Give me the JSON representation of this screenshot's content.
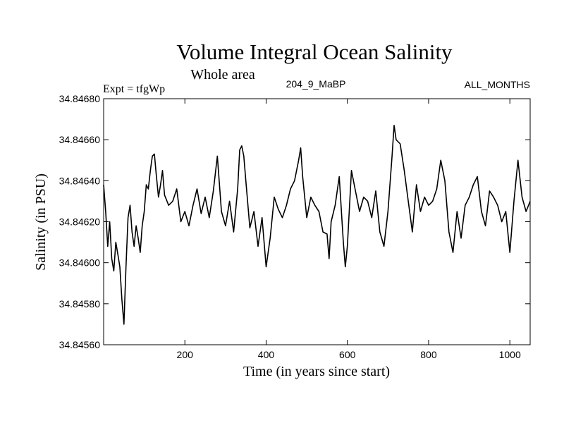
{
  "chart_data": {
    "type": "line",
    "title": "Volume Integral Ocean Salinity",
    "subtitle": "Whole area",
    "experiment_label": "Expt = tfgWp",
    "run_label": "204_9_MaBP",
    "months_label": "ALL_MONTHS",
    "xlabel": "Time (in years since start)",
    "ylabel": "Salinity (in PSU)",
    "xlim": [
      0,
      1050
    ],
    "ylim": [
      34.8456,
      34.8468
    ],
    "x_ticks": [
      200,
      400,
      600,
      800,
      1000
    ],
    "x_tick_labels": [
      "200",
      "400",
      "600",
      "800",
      "1000"
    ],
    "y_ticks": [
      34.8456,
      34.8458,
      34.846,
      34.8462,
      34.8464,
      34.8466,
      34.8468
    ],
    "y_tick_labels": [
      "34.84560",
      "34.84580",
      "34.84600",
      "34.84620",
      "34.84640",
      "34.84660",
      "34.84680"
    ],
    "grid": false,
    "series": [
      {
        "name": "salinity",
        "color": "#000000",
        "x": [
          0,
          5,
          10,
          15,
          20,
          25,
          30,
          35,
          40,
          45,
          50,
          55,
          60,
          65,
          70,
          75,
          80,
          85,
          90,
          95,
          100,
          105,
          110,
          115,
          120,
          125,
          130,
          135,
          140,
          145,
          150,
          160,
          170,
          180,
          190,
          200,
          210,
          220,
          230,
          240,
          250,
          260,
          270,
          280,
          290,
          300,
          310,
          320,
          330,
          335,
          340,
          345,
          350,
          360,
          370,
          380,
          390,
          400,
          410,
          420,
          430,
          440,
          450,
          460,
          470,
          480,
          485,
          490,
          500,
          510,
          520,
          530,
          540,
          550,
          555,
          560,
          570,
          580,
          590,
          595,
          600,
          610,
          620,
          630,
          640,
          650,
          660,
          670,
          680,
          690,
          700,
          710,
          715,
          720,
          730,
          740,
          750,
          760,
          770,
          780,
          790,
          800,
          810,
          820,
          830,
          840,
          850,
          860,
          870,
          880,
          890,
          900,
          910,
          920,
          930,
          940,
          950,
          960,
          970,
          980,
          990,
          1000,
          1010,
          1020,
          1030,
          1040,
          1050
        ],
        "values": [
          34.84638,
          34.84625,
          34.84608,
          34.8462,
          34.84602,
          34.84596,
          34.8461,
          34.84604,
          34.84598,
          34.84582,
          34.8457,
          34.84598,
          34.84622,
          34.84628,
          34.84615,
          34.84608,
          34.84618,
          34.84612,
          34.84605,
          34.84618,
          34.84625,
          34.84638,
          34.84636,
          34.84645,
          34.84652,
          34.84653,
          34.84642,
          34.84632,
          34.84638,
          34.84645,
          34.84633,
          34.84628,
          34.8463,
          34.84636,
          34.8462,
          34.84625,
          34.84618,
          34.84628,
          34.84636,
          34.84624,
          34.84632,
          34.84622,
          34.84635,
          34.84652,
          34.84625,
          34.84618,
          34.8463,
          34.84615,
          34.84636,
          34.84655,
          34.84657,
          34.84652,
          34.8464,
          34.84617,
          34.84625,
          34.84608,
          34.84622,
          34.84598,
          34.84612,
          34.84632,
          34.84626,
          34.84622,
          34.84628,
          34.84636,
          34.8464,
          34.8465,
          34.84656,
          34.84642,
          34.84622,
          34.84632,
          34.84628,
          34.84625,
          34.84615,
          34.84614,
          34.84602,
          34.8462,
          34.84628,
          34.84642,
          34.8461,
          34.84598,
          34.84608,
          34.84645,
          34.84635,
          34.84625,
          34.84632,
          34.8463,
          34.84622,
          34.84635,
          34.84615,
          34.84608,
          34.84625,
          34.84652,
          34.84667,
          34.8466,
          34.84658,
          34.84645,
          34.8463,
          34.84615,
          34.84638,
          34.84625,
          34.84632,
          34.84628,
          34.8463,
          34.84636,
          34.8465,
          34.8464,
          34.84615,
          34.84605,
          34.84625,
          34.84612,
          34.84628,
          34.84632,
          34.84638,
          34.84642,
          34.84625,
          34.84618,
          34.84635,
          34.84632,
          34.84628,
          34.8462,
          34.84625,
          34.84605,
          34.8463,
          34.8465,
          34.84632,
          34.84625,
          34.8463
        ]
      }
    ]
  }
}
